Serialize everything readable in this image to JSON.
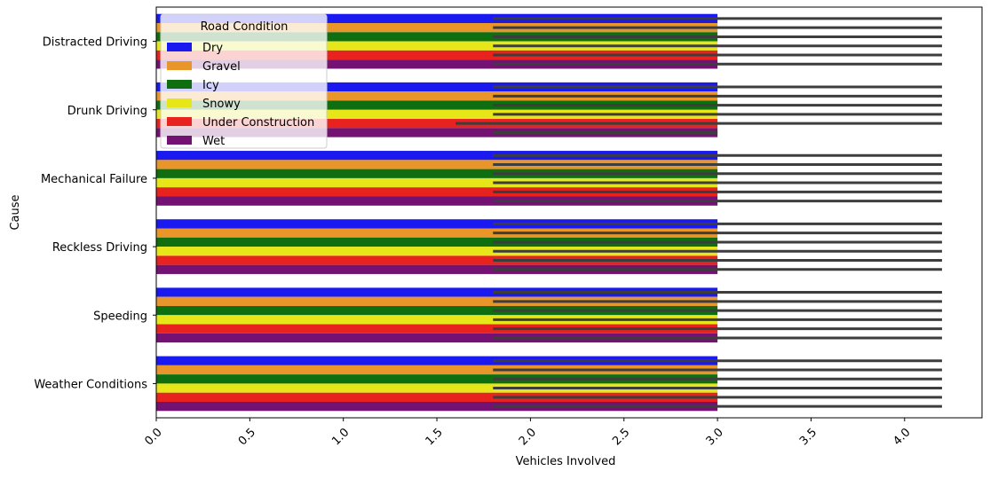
{
  "chart_data": {
    "type": "bar",
    "orientation": "horizontal",
    "xlabel": "Vehicles Involved",
    "ylabel": "Cause",
    "xlim": [
      0,
      4.2
    ],
    "xticks": [
      "0.0",
      "0.5",
      "1.0",
      "1.5",
      "2.0",
      "2.5",
      "3.0",
      "3.5",
      "4.0"
    ],
    "x_tick_rotation": 45,
    "grid": false,
    "categories": [
      "Distracted Driving",
      "Drunk Driving",
      "Mechanical Failure",
      "Reckless Driving",
      "Speeding",
      "Weather Conditions"
    ],
    "legend": {
      "title": "Road Condition",
      "placement": "upper-left"
    },
    "series": [
      {
        "name": "Dry",
        "color": "#1a1af0",
        "values": [
          3.0,
          3.0,
          3.0,
          3.0,
          3.0,
          3.0
        ],
        "ci": [
          [
            1.8,
            4.2
          ],
          [
            1.8,
            4.2
          ],
          [
            1.8,
            4.2
          ],
          [
            1.8,
            4.2
          ],
          [
            1.8,
            4.2
          ],
          [
            1.8,
            4.2
          ]
        ]
      },
      {
        "name": "Gravel",
        "color": "#e8962a",
        "values": [
          3.0,
          3.0,
          3.0,
          3.0,
          3.0,
          3.0
        ],
        "ci": [
          [
            1.8,
            4.2
          ],
          [
            1.8,
            4.2
          ],
          [
            1.8,
            4.2
          ],
          [
            1.8,
            4.2
          ],
          [
            1.8,
            4.2
          ],
          [
            1.8,
            4.2
          ]
        ]
      },
      {
        "name": "Icy",
        "color": "#0f6e0f",
        "values": [
          3.0,
          3.0,
          3.0,
          3.0,
          3.0,
          3.0
        ],
        "ci": [
          [
            1.8,
            4.2
          ],
          [
            1.8,
            4.2
          ],
          [
            1.8,
            4.2
          ],
          [
            1.8,
            4.2
          ],
          [
            1.8,
            4.2
          ],
          [
            1.8,
            4.2
          ]
        ]
      },
      {
        "name": "Snowy",
        "color": "#e6e619",
        "values": [
          3.0,
          3.0,
          3.0,
          3.0,
          3.0,
          3.0
        ],
        "ci": [
          [
            1.8,
            4.2
          ],
          [
            1.8,
            4.2
          ],
          [
            1.8,
            4.2
          ],
          [
            1.8,
            4.2
          ],
          [
            1.8,
            4.2
          ],
          [
            1.8,
            4.2
          ]
        ]
      },
      {
        "name": "Under Construction",
        "color": "#e8231f",
        "values": [
          3.0,
          3.0,
          3.0,
          3.0,
          3.0,
          3.0
        ],
        "ci": [
          [
            1.8,
            4.2
          ],
          [
            1.6,
            4.2
          ],
          [
            1.8,
            4.2
          ],
          [
            1.8,
            4.2
          ],
          [
            1.8,
            4.2
          ],
          [
            1.8,
            4.2
          ]
        ]
      },
      {
        "name": "Wet",
        "color": "#731273",
        "values": [
          3.0,
          3.0,
          3.0,
          3.0,
          3.0,
          3.0
        ],
        "ci": [
          [
            1.8,
            4.2
          ],
          [
            1.8,
            3.0
          ],
          [
            1.8,
            4.2
          ],
          [
            1.8,
            4.2
          ],
          [
            1.8,
            4.2
          ],
          [
            1.8,
            4.2
          ]
        ]
      }
    ],
    "errorbar_color": "#3d3d3d"
  }
}
